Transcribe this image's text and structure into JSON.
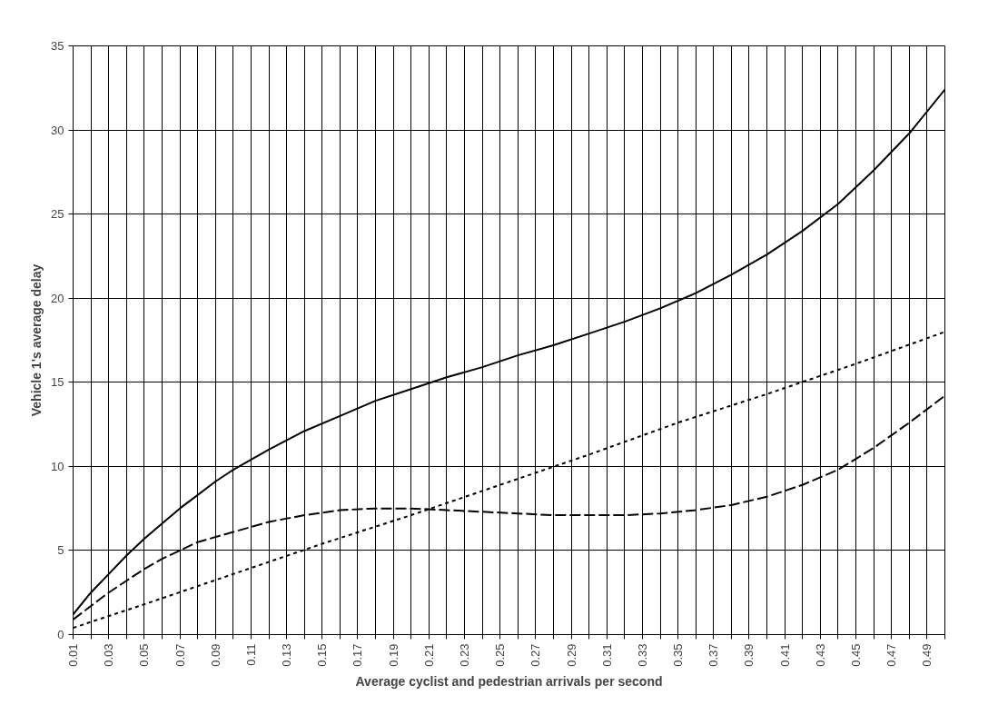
{
  "chart_data": {
    "type": "line",
    "xlabel": "Average cyclist and pedestrian arrivals per second",
    "ylabel": "Vehicle 1's average delay",
    "xlim": [
      0.01,
      0.5
    ],
    "ylim": [
      0,
      35
    ],
    "yticks": [
      0,
      5,
      10,
      15,
      20,
      25,
      30,
      35
    ],
    "xticks": [
      0.01,
      {
        "value": 0.02,
        "label": null
      },
      0.03,
      {
        "value": 0.04,
        "label": null
      },
      0.05,
      {
        "value": 0.06,
        "label": null
      },
      0.07,
      {
        "value": 0.08,
        "label": null
      },
      0.09,
      {
        "value": 0.1,
        "label": null
      },
      0.11,
      {
        "value": 0.12,
        "label": null
      },
      0.13,
      {
        "value": 0.14,
        "label": null
      },
      0.15,
      {
        "value": 0.16,
        "label": null
      },
      0.17,
      {
        "value": 0.18,
        "label": null
      },
      0.19,
      {
        "value": 0.2,
        "label": null
      },
      0.21,
      {
        "value": 0.22,
        "label": null
      },
      0.23,
      {
        "value": 0.24,
        "label": null
      },
      0.25,
      {
        "value": 0.26,
        "label": null
      },
      0.27,
      {
        "value": 0.28,
        "label": null
      },
      0.29,
      {
        "value": 0.3,
        "label": null
      },
      0.31,
      {
        "value": 0.32,
        "label": null
      },
      0.33,
      {
        "value": 0.34,
        "label": null
      },
      0.35,
      {
        "value": 0.36,
        "label": null
      },
      0.37,
      {
        "value": 0.38,
        "label": null
      },
      0.39,
      {
        "value": 0.4,
        "label": null
      },
      0.41,
      {
        "value": 0.42,
        "label": null
      },
      0.43,
      {
        "value": 0.44,
        "label": null
      },
      0.45,
      {
        "value": 0.46,
        "label": null
      },
      0.47,
      {
        "value": 0.48,
        "label": null
      },
      0.49,
      {
        "value": 0.5,
        "label": null
      }
    ],
    "grid": true,
    "marker": "none",
    "series": [
      {
        "color": "#000000",
        "line_style": "solid",
        "x": [
          0.01,
          0.02,
          0.03,
          0.04,
          0.05,
          0.06,
          0.07,
          0.08,
          0.09,
          0.1,
          0.12,
          0.14,
          0.16,
          0.18,
          0.2,
          0.22,
          0.24,
          0.26,
          0.28,
          0.3,
          0.32,
          0.34,
          0.36,
          0.38,
          0.4,
          0.42,
          0.44,
          0.46,
          0.48,
          0.5
        ],
        "values": [
          1.2,
          2.5,
          3.6,
          4.7,
          5.7,
          6.6,
          7.5,
          8.3,
          9.1,
          9.8,
          11.0,
          12.1,
          13.0,
          13.9,
          14.6,
          15.3,
          15.9,
          16.6,
          17.2,
          17.9,
          18.6,
          19.4,
          20.3,
          21.4,
          22.6,
          24.0,
          25.6,
          27.6,
          29.8,
          32.4
        ]
      },
      {
        "color": "#000000",
        "line_style": "dashed",
        "x": [
          0.01,
          0.02,
          0.03,
          0.04,
          0.05,
          0.06,
          0.07,
          0.08,
          0.1,
          0.12,
          0.14,
          0.16,
          0.18,
          0.2,
          0.22,
          0.24,
          0.26,
          0.28,
          0.3,
          0.32,
          0.34,
          0.36,
          0.38,
          0.4,
          0.42,
          0.44,
          0.46,
          0.48,
          0.5
        ],
        "values": [
          0.9,
          1.7,
          2.5,
          3.2,
          3.9,
          4.5,
          5.0,
          5.5,
          6.1,
          6.7,
          7.1,
          7.4,
          7.5,
          7.5,
          7.4,
          7.3,
          7.2,
          7.1,
          7.1,
          7.1,
          7.2,
          7.4,
          7.7,
          8.2,
          8.9,
          9.8,
          11.1,
          12.6,
          14.2
        ]
      },
      {
        "color": "#000000",
        "line_style": "dotted",
        "x": [
          0.01,
          0.05,
          0.1,
          0.15,
          0.2,
          0.25,
          0.3,
          0.35,
          0.4,
          0.45,
          0.5
        ],
        "values": [
          0.4,
          1.8,
          3.6,
          5.4,
          7.1,
          8.9,
          10.7,
          12.6,
          14.3,
          16.1,
          18.0
        ]
      }
    ]
  }
}
